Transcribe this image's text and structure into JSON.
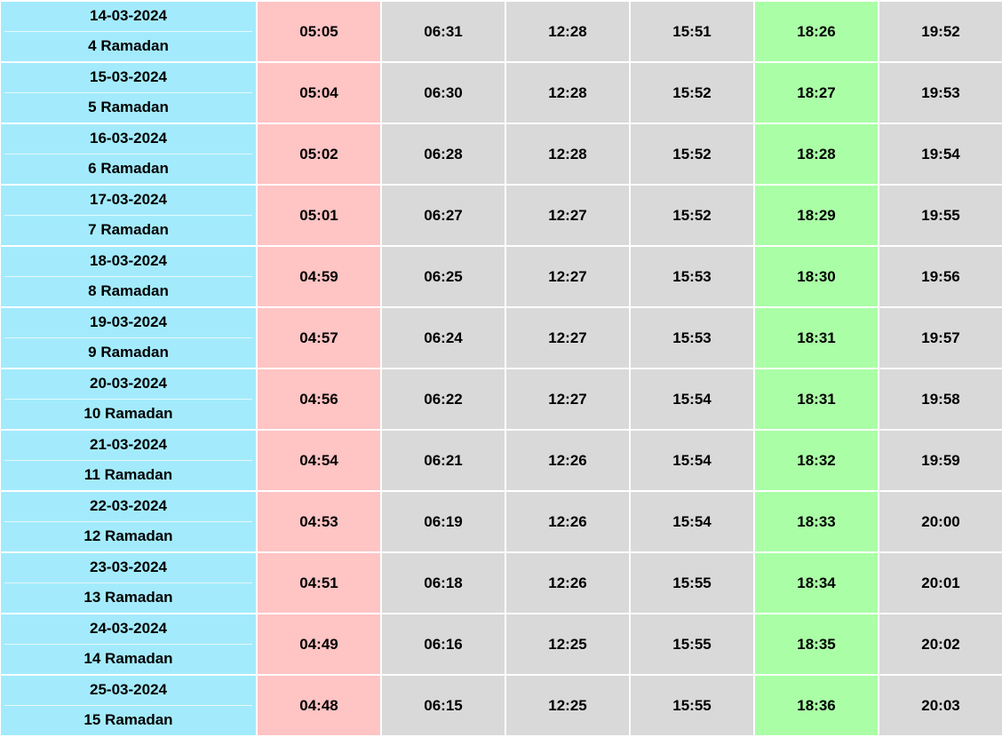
{
  "colors": {
    "date_bg": "#a3ebfc",
    "fajr_bg": "#ffc4c4",
    "maghrib_bg": "#aaffa6",
    "default_bg": "#d9d9d9"
  },
  "rows": [
    {
      "gregorian": "14-03-2024",
      "hijri": "4 Ramadan",
      "times": [
        "05:05",
        "06:31",
        "12:28",
        "15:51",
        "18:26",
        "19:52"
      ]
    },
    {
      "gregorian": "15-03-2024",
      "hijri": "5 Ramadan",
      "times": [
        "05:04",
        "06:30",
        "12:28",
        "15:52",
        "18:27",
        "19:53"
      ]
    },
    {
      "gregorian": "16-03-2024",
      "hijri": "6 Ramadan",
      "times": [
        "05:02",
        "06:28",
        "12:28",
        "15:52",
        "18:28",
        "19:54"
      ]
    },
    {
      "gregorian": "17-03-2024",
      "hijri": "7 Ramadan",
      "times": [
        "05:01",
        "06:27",
        "12:27",
        "15:52",
        "18:29",
        "19:55"
      ]
    },
    {
      "gregorian": "18-03-2024",
      "hijri": "8 Ramadan",
      "times": [
        "04:59",
        "06:25",
        "12:27",
        "15:53",
        "18:30",
        "19:56"
      ]
    },
    {
      "gregorian": "19-03-2024",
      "hijri": "9 Ramadan",
      "times": [
        "04:57",
        "06:24",
        "12:27",
        "15:53",
        "18:31",
        "19:57"
      ]
    },
    {
      "gregorian": "20-03-2024",
      "hijri": "10 Ramadan",
      "times": [
        "04:56",
        "06:22",
        "12:27",
        "15:54",
        "18:31",
        "19:58"
      ]
    },
    {
      "gregorian": "21-03-2024",
      "hijri": "11 Ramadan",
      "times": [
        "04:54",
        "06:21",
        "12:26",
        "15:54",
        "18:32",
        "19:59"
      ]
    },
    {
      "gregorian": "22-03-2024",
      "hijri": "12 Ramadan",
      "times": [
        "04:53",
        "06:19",
        "12:26",
        "15:54",
        "18:33",
        "20:00"
      ]
    },
    {
      "gregorian": "23-03-2024",
      "hijri": "13 Ramadan",
      "times": [
        "04:51",
        "06:18",
        "12:26",
        "15:55",
        "18:34",
        "20:01"
      ]
    },
    {
      "gregorian": "24-03-2024",
      "hijri": "14 Ramadan",
      "times": [
        "04:49",
        "06:16",
        "12:25",
        "15:55",
        "18:35",
        "20:02"
      ]
    },
    {
      "gregorian": "25-03-2024",
      "hijri": "15 Ramadan",
      "times": [
        "04:48",
        "06:15",
        "12:25",
        "15:55",
        "18:36",
        "20:03"
      ]
    }
  ]
}
